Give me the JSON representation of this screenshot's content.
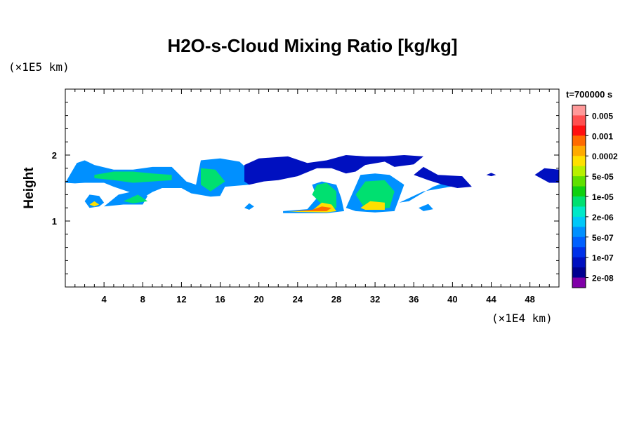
{
  "chart_data": {
    "type": "heatmap",
    "title": "H2O-s-Cloud Mixing Ratio [kg/kg]",
    "xlabel": "",
    "ylabel": "Height",
    "x_unit": "(×1E4 km)",
    "y_unit": "(×1E5 km)",
    "xlim": [
      0,
      51
    ],
    "ylim": [
      0,
      3
    ],
    "x_ticks": [
      4,
      8,
      12,
      16,
      20,
      24,
      28,
      32,
      36,
      40,
      44,
      48
    ],
    "y_ticks": [
      1,
      2
    ],
    "x_tick_labels": [
      "4",
      "8",
      "12",
      "16",
      "20",
      "24",
      "28",
      "32",
      "36",
      "40",
      "44",
      "48"
    ],
    "y_tick_labels": [
      "1",
      "2"
    ],
    "time_label": "t=700000 s",
    "legend": {
      "placement": "right",
      "labels": [
        "0.005",
        "0.001",
        "0.0002",
        "5e-05",
        "1e-05",
        "2e-06",
        "5e-07",
        "1e-07",
        "2e-08"
      ],
      "colors": [
        "#ff9999",
        "#ff5050",
        "#ff1010",
        "#ff6a00",
        "#ffaa00",
        "#ffe000",
        "#b8f000",
        "#60e000",
        "#10d010",
        "#00e070",
        "#00e8c8",
        "#00c8f8",
        "#0090ff",
        "#0060ff",
        "#0030e8",
        "#0010c0",
        "#000090",
        "#8000a8"
      ]
    },
    "regions": [
      {
        "level": 12,
        "points": [
          [
            0,
            1.58
          ],
          [
            1.2,
            1.88
          ],
          [
            2,
            1.92
          ],
          [
            3,
            1.85
          ],
          [
            5,
            1.78
          ],
          [
            7,
            1.78
          ],
          [
            9,
            1.82
          ],
          [
            11,
            1.82
          ],
          [
            12.5,
            1.6
          ],
          [
            13.5,
            1.55
          ],
          [
            14,
            1.92
          ],
          [
            16,
            1.95
          ],
          [
            18,
            1.9
          ],
          [
            19.5,
            1.7
          ],
          [
            19,
            1.55
          ],
          [
            16.5,
            1.52
          ],
          [
            16,
            1.38
          ],
          [
            15,
            1.37
          ],
          [
            13,
            1.42
          ],
          [
            12,
            1.5
          ],
          [
            11,
            1.5
          ],
          [
            10,
            1.5
          ],
          [
            9,
            1.44
          ],
          [
            8,
            1.35
          ],
          [
            7,
            1.42
          ],
          [
            5,
            1.52
          ],
          [
            4,
            1.58
          ],
          [
            2,
            1.58
          ],
          [
            1,
            1.57
          ],
          [
            0,
            1.58
          ]
        ]
      },
      {
        "level": 12,
        "points": [
          [
            2,
            1.3
          ],
          [
            2.5,
            1.4
          ],
          [
            3.5,
            1.38
          ],
          [
            4,
            1.28
          ],
          [
            3.5,
            1.22
          ],
          [
            2.5,
            1.2
          ],
          [
            2,
            1.3
          ]
        ]
      },
      {
        "level": 12,
        "points": [
          [
            4,
            1.22
          ],
          [
            5.5,
            1.4
          ],
          [
            7,
            1.45
          ],
          [
            8.5,
            1.38
          ],
          [
            8,
            1.25
          ],
          [
            6,
            1.25
          ],
          [
            4,
            1.22
          ]
        ]
      },
      {
        "level": 12,
        "points": [
          [
            18.5,
            1.2
          ],
          [
            19,
            1.27
          ],
          [
            19.5,
            1.22
          ],
          [
            19,
            1.17
          ],
          [
            18.5,
            1.2
          ]
        ]
      },
      {
        "level": 12,
        "points": [
          [
            22.5,
            1.15
          ],
          [
            25,
            1.18
          ],
          [
            26,
            1.35
          ],
          [
            25.5,
            1.55
          ],
          [
            26.5,
            1.6
          ],
          [
            28,
            1.55
          ],
          [
            28.5,
            1.35
          ],
          [
            28.8,
            1.15
          ],
          [
            27,
            1.12
          ],
          [
            22.5,
            1.12
          ],
          [
            22.5,
            1.15
          ]
        ]
      },
      {
        "level": 12,
        "points": [
          [
            29,
            1.2
          ],
          [
            30.5,
            1.7
          ],
          [
            32,
            1.72
          ],
          [
            33.5,
            1.7
          ],
          [
            35,
            1.55
          ],
          [
            34.5,
            1.35
          ],
          [
            34,
            1.15
          ],
          [
            32,
            1.13
          ],
          [
            30,
            1.15
          ],
          [
            29,
            1.2
          ]
        ]
      },
      {
        "level": 12,
        "points": [
          [
            34.5,
            1.28
          ],
          [
            37,
            1.45
          ],
          [
            39,
            1.5
          ],
          [
            41,
            1.55
          ],
          [
            39.5,
            1.6
          ],
          [
            38,
            1.52
          ],
          [
            35.5,
            1.3
          ],
          [
            34.5,
            1.28
          ]
        ]
      },
      {
        "level": 12,
        "points": [
          [
            36.5,
            1.2
          ],
          [
            37.5,
            1.26
          ],
          [
            38,
            1.18
          ],
          [
            37,
            1.15
          ],
          [
            36.5,
            1.2
          ]
        ]
      },
      {
        "level": 15,
        "points": [
          [
            18.5,
            1.85
          ],
          [
            20,
            1.95
          ],
          [
            23,
            1.98
          ],
          [
            25,
            1.88
          ],
          [
            27,
            1.92
          ],
          [
            29,
            2.0
          ],
          [
            31,
            1.98
          ],
          [
            33,
            1.98
          ],
          [
            35,
            2.0
          ],
          [
            37,
            1.98
          ],
          [
            36,
            1.86
          ],
          [
            34,
            1.82
          ],
          [
            33,
            1.9
          ],
          [
            31,
            1.85
          ],
          [
            30,
            1.75
          ],
          [
            29,
            1.72
          ],
          [
            27.5,
            1.8
          ],
          [
            26,
            1.8
          ],
          [
            24,
            1.68
          ],
          [
            22,
            1.62
          ],
          [
            20.5,
            1.6
          ],
          [
            19,
            1.55
          ],
          [
            18.5,
            1.6
          ],
          [
            18.5,
            1.85
          ]
        ]
      },
      {
        "level": 15,
        "points": [
          [
            36,
            1.7
          ],
          [
            37,
            1.82
          ],
          [
            38.5,
            1.7
          ],
          [
            41,
            1.68
          ],
          [
            42,
            1.52
          ],
          [
            40.5,
            1.5
          ],
          [
            39,
            1.55
          ],
          [
            37.5,
            1.62
          ],
          [
            36,
            1.7
          ]
        ]
      },
      {
        "level": 15,
        "points": [
          [
            48.5,
            1.7
          ],
          [
            49.5,
            1.8
          ],
          [
            51,
            1.78
          ],
          [
            51,
            1.58
          ],
          [
            50,
            1.58
          ],
          [
            48.5,
            1.7
          ]
        ]
      },
      {
        "level": 15,
        "points": [
          [
            43.5,
            1.7
          ],
          [
            44,
            1.73
          ],
          [
            44.5,
            1.7
          ],
          [
            44,
            1.68
          ],
          [
            43.5,
            1.7
          ]
        ]
      },
      {
        "level": 9,
        "points": [
          [
            3,
            1.7
          ],
          [
            5,
            1.75
          ],
          [
            7,
            1.75
          ],
          [
            9,
            1.72
          ],
          [
            11,
            1.7
          ],
          [
            11,
            1.62
          ],
          [
            9,
            1.6
          ],
          [
            7,
            1.58
          ],
          [
            5,
            1.62
          ],
          [
            3,
            1.65
          ],
          [
            3,
            1.7
          ]
        ]
      },
      {
        "level": 9,
        "points": [
          [
            14,
            1.8
          ],
          [
            15.5,
            1.78
          ],
          [
            16.5,
            1.6
          ],
          [
            15,
            1.45
          ],
          [
            14,
            1.55
          ],
          [
            14,
            1.8
          ]
        ]
      },
      {
        "level": 9,
        "points": [
          [
            6,
            1.3
          ],
          [
            7.5,
            1.4
          ],
          [
            8.5,
            1.3
          ],
          [
            7,
            1.27
          ],
          [
            6,
            1.3
          ]
        ]
      },
      {
        "level": 9,
        "points": [
          [
            25.5,
            1.4
          ],
          [
            26,
            1.55
          ],
          [
            27,
            1.58
          ],
          [
            28,
            1.45
          ],
          [
            28,
            1.2
          ],
          [
            27,
            1.18
          ],
          [
            25.5,
            1.4
          ]
        ]
      },
      {
        "level": 9,
        "points": [
          [
            30,
            1.4
          ],
          [
            31,
            1.6
          ],
          [
            33,
            1.62
          ],
          [
            34,
            1.45
          ],
          [
            33.5,
            1.2
          ],
          [
            31,
            1.18
          ],
          [
            30,
            1.4
          ]
        ]
      },
      {
        "level": 5,
        "points": [
          [
            23,
            1.14
          ],
          [
            25.5,
            1.16
          ],
          [
            26.5,
            1.28
          ],
          [
            27.5,
            1.25
          ],
          [
            28,
            1.15
          ],
          [
            27,
            1.13
          ],
          [
            23,
            1.14
          ]
        ]
      },
      {
        "level": 5,
        "points": [
          [
            30.5,
            1.2
          ],
          [
            31.5,
            1.3
          ],
          [
            33,
            1.28
          ],
          [
            33,
            1.17
          ],
          [
            31,
            1.17
          ],
          [
            30.5,
            1.2
          ]
        ]
      },
      {
        "level": 5,
        "points": [
          [
            2.5,
            1.25
          ],
          [
            3,
            1.3
          ],
          [
            3.5,
            1.25
          ],
          [
            3,
            1.22
          ],
          [
            2.5,
            1.25
          ]
        ]
      },
      {
        "level": 3,
        "points": [
          [
            23.5,
            1.15
          ],
          [
            25.5,
            1.17
          ],
          [
            26.5,
            1.22
          ],
          [
            27.5,
            1.2
          ],
          [
            27,
            1.15
          ],
          [
            23.5,
            1.15
          ]
        ]
      }
    ]
  }
}
